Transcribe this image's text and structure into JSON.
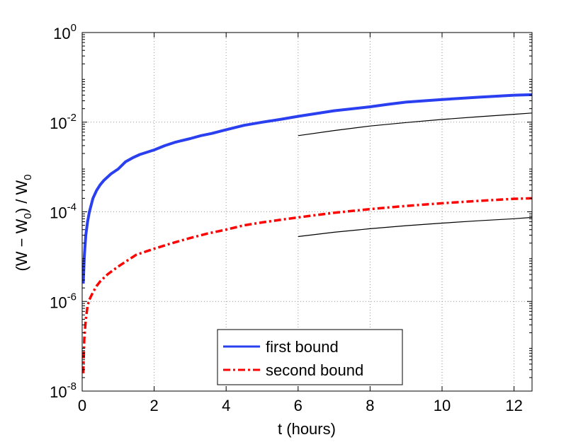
{
  "chart_data": {
    "type": "line",
    "title": "",
    "xlabel": "t (hours)",
    "ylabel": {
      "text": "(W − W",
      "sub1": "0",
      "mid": ") / W",
      "sub2": "0"
    },
    "xlim": [
      0,
      12.5
    ],
    "ylim": [
      1e-08,
      1
    ],
    "yscale": "log",
    "grid": true,
    "legend_position": "bottom-center",
    "x_ticks": [
      "0",
      "2",
      "4",
      "6",
      "8",
      "10",
      "12"
    ],
    "y_ticks": [
      {
        "base": "10",
        "exp": "0"
      },
      {
        "base": "10",
        "exp": "-2"
      },
      {
        "base": "10",
        "exp": "-4"
      },
      {
        "base": "10",
        "exp": "-6"
      },
      {
        "base": "10",
        "exp": "-8"
      }
    ],
    "series": [
      {
        "name": "first bound",
        "color": "#2a3ff0",
        "style": "solid",
        "x": [
          0.03,
          0.06,
          0.1,
          0.15,
          0.2,
          0.3,
          0.4,
          0.5,
          0.6,
          0.8,
          1.0,
          1.2,
          1.4,
          1.6,
          2.0,
          2.3,
          2.6,
          3.0,
          3.3,
          3.6,
          4.0,
          4.5,
          5.0,
          5.5,
          6.0,
          7.0,
          8.0,
          8.5,
          9.0,
          10.0,
          11.0,
          12.0,
          12.5
        ],
        "y": [
          2.5e-06,
          1e-05,
          3e-05,
          6e-05,
          0.0001,
          0.0002,
          0.0003,
          0.0004,
          0.0005,
          0.0007,
          0.0009,
          0.0013,
          0.0016,
          0.0019,
          0.0024,
          0.003,
          0.0036,
          0.0043,
          0.005,
          0.0056,
          0.0068,
          0.0085,
          0.01,
          0.0115,
          0.0135,
          0.018,
          0.022,
          0.025,
          0.028,
          0.032,
          0.036,
          0.04,
          0.041
        ]
      },
      {
        "name": "second bound",
        "color": "#ff0000",
        "style": "dashdot",
        "x": [
          0.03,
          0.06,
          0.1,
          0.15,
          0.2,
          0.3,
          0.4,
          0.5,
          0.7,
          1.0,
          1.5,
          2.0,
          2.5,
          3.0,
          3.5,
          4.0,
          4.5,
          5.0,
          5.5,
          6.0,
          7.0,
          8.0,
          9.0,
          10.0,
          11.0,
          12.0,
          12.5
        ],
        "y": [
          2.5e-08,
          1.5e-07,
          4e-07,
          8e-07,
          1.1e-06,
          1.6e-06,
          2.2e-06,
          2.8e-06,
          4e-06,
          6e-06,
          1.1e-05,
          1.5e-05,
          2e-05,
          2.6e-05,
          3.3e-05,
          4e-05,
          5e-05,
          5.8e-05,
          6.6e-05,
          7.5e-05,
          9.5e-05,
          0.000115,
          0.000135,
          0.000155,
          0.000175,
          0.000195,
          0.0002
        ]
      },
      {
        "name": "",
        "color": "#000000",
        "style": "thin",
        "x": [
          6.0,
          7.0,
          8.0,
          9.0,
          10.0,
          11.0,
          12.0,
          12.5
        ],
        "y": [
          0.005,
          0.0065,
          0.0082,
          0.0098,
          0.0115,
          0.0132,
          0.015,
          0.016
        ]
      },
      {
        "name": "",
        "color": "#000000",
        "style": "thin",
        "x": [
          6.0,
          7.0,
          8.0,
          9.0,
          10.0,
          11.0,
          12.0,
          12.5
        ],
        "y": [
          2.8e-05,
          3.5e-05,
          4.2e-05,
          4.9e-05,
          5.6e-05,
          6.3e-05,
          7e-05,
          7.5e-05
        ]
      }
    ]
  }
}
